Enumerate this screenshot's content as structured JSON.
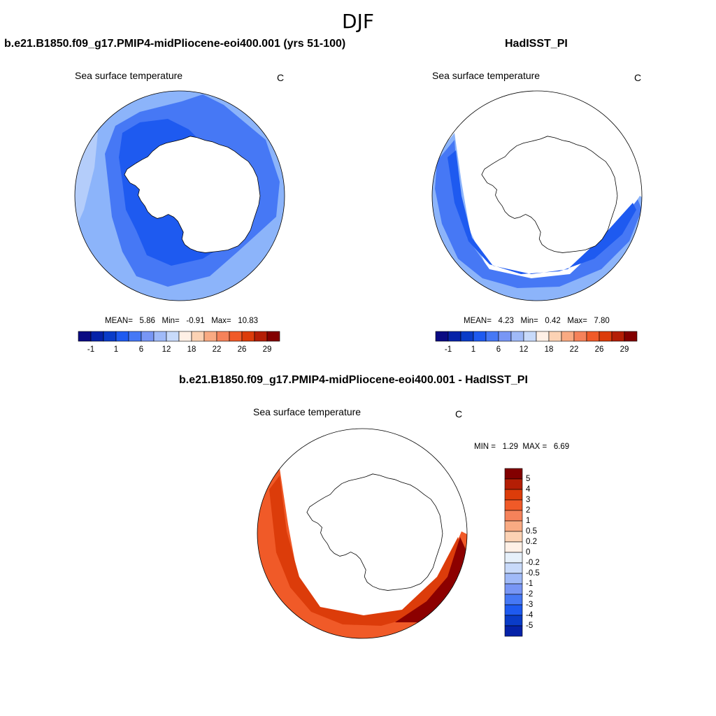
{
  "figure": {
    "title": "DJF"
  },
  "panels": [
    {
      "case": "b.e21.B1850.f09_g17.PMIP4-midPliocene-eoi400.001 (yrs 51-100)",
      "variable": "Sea surface temperature",
      "units": "C",
      "stats": {
        "mean_label": "MEAN=",
        "mean": "5.86",
        "min_label": "Min=",
        "min": "-0.91",
        "max_label": "Max=",
        "max": "10.83"
      }
    },
    {
      "case": "HadISST_PI",
      "variable": "Sea surface temperature",
      "units": "C",
      "stats": {
        "mean_label": "MEAN=",
        "mean": "4.23",
        "min_label": "Min=",
        "min": "0.42",
        "max_label": "Max=",
        "max": "7.80"
      }
    },
    {
      "case": "b.e21.B1850.f09_g17.PMIP4-midPliocene-eoi400.001 - HadISST_PI",
      "variable": "Sea surface temperature",
      "units": "C",
      "stats": {
        "min_label": "MIN =",
        "min": "1.29",
        "max_label": "MAX =",
        "max": "6.69"
      }
    }
  ],
  "chart_data": [
    {
      "type": "heatmap",
      "projection": "south-polar-stereographic",
      "title": "b.e21.B1850.f09_g17.PMIP4-midPliocene-eoi400.001 (yrs 51-100)",
      "label": "Sea surface temperature",
      "units": "C",
      "colorbar": {
        "orientation": "horizontal",
        "levels": [
          "-1",
          "1",
          "6",
          "12",
          "18",
          "22",
          "26",
          "29"
        ],
        "colors": [
          "#0a0a82",
          "#0522a8",
          "#0a3cc8",
          "#1e5af0",
          "#4678f5",
          "#7896f5",
          "#a0baf8",
          "#c8dafa",
          "#fff0e6",
          "#fcd2b4",
          "#f9aa82",
          "#f5825a",
          "#f05a28",
          "#dc3c0a",
          "#b41e05",
          "#820000"
        ]
      },
      "mean": 5.86,
      "min": -0.91,
      "max": 10.83
    },
    {
      "type": "heatmap",
      "projection": "south-polar-stereographic",
      "title": "HadISST_PI",
      "label": "Sea surface temperature",
      "units": "C",
      "colorbar": {
        "orientation": "horizontal",
        "levels": [
          "-1",
          "1",
          "6",
          "12",
          "18",
          "22",
          "26",
          "29"
        ],
        "colors": [
          "#0a0a82",
          "#0522a8",
          "#0a3cc8",
          "#1e5af0",
          "#4678f5",
          "#7896f5",
          "#a0baf8",
          "#c8dafa",
          "#fff0e6",
          "#fcd2b4",
          "#f9aa82",
          "#f5825a",
          "#f05a28",
          "#dc3c0a",
          "#b41e05",
          "#820000"
        ]
      },
      "mean": 4.23,
      "min": 0.42,
      "max": 7.8
    },
    {
      "type": "heatmap",
      "projection": "south-polar-stereographic",
      "title": "b.e21.B1850.f09_g17.PMIP4-midPliocene-eoi400.001 - HadISST_PI",
      "label": "Sea surface temperature",
      "units": "C",
      "colorbar": {
        "orientation": "vertical",
        "levels": [
          "5",
          "4",
          "3",
          "2",
          "1",
          "0.5",
          "0.2",
          "0",
          "-0.2",
          "-0.5",
          "-1",
          "-2",
          "-3",
          "-4",
          "-5"
        ],
        "colors": [
          "#820000",
          "#b41e05",
          "#dc3c0a",
          "#f05a28",
          "#f5825a",
          "#f9aa82",
          "#fcd2b4",
          "#fff0e6",
          "#e6f0fa",
          "#c8dafa",
          "#a0baf8",
          "#7896f5",
          "#4678f5",
          "#1e5af0",
          "#0a3cc8",
          "#0522a8"
        ]
      },
      "min": 1.29,
      "max": 6.69
    }
  ],
  "colors": {
    "ice_free_blue_light": "#8cb4fa",
    "blue_mid": "#4678f5",
    "blue_dark": "#1e5af0",
    "navy": "#0a2ab4",
    "pale_blue": "#b4cdfa",
    "red_mid": "#f05a28",
    "red_dark": "#dc3c0a",
    "maroon": "#8c0000",
    "land": "#ffffff"
  }
}
